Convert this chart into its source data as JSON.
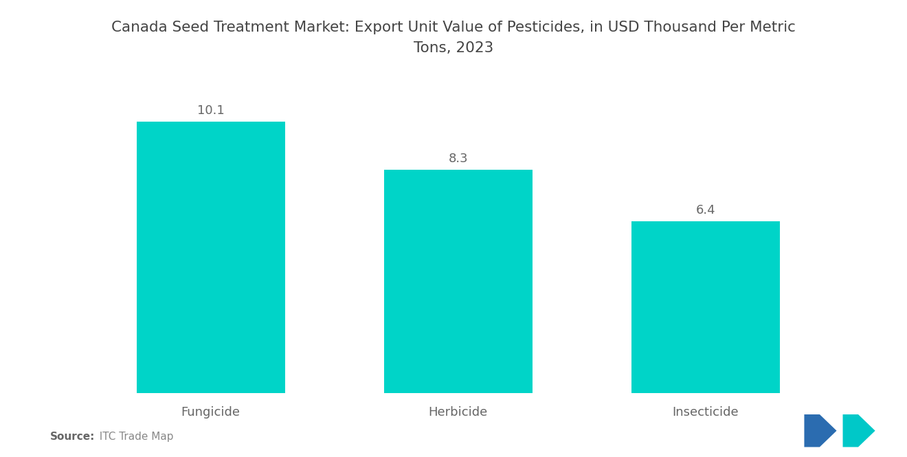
{
  "title_line1": "Canada Seed Treatment Market: Export Unit Value of Pesticides, in USD Thousand Per Metric",
  "title_line2": "Tons, 2023",
  "categories": [
    "Fungicide",
    "Herbicide",
    "Insecticide"
  ],
  "values": [
    10.1,
    8.3,
    6.4
  ],
  "bar_color": "#00D4C8",
  "background_color": "#ffffff",
  "value_labels": [
    "10.1",
    "8.3",
    "6.4"
  ],
  "source_bold": "Source:",
  "source_label": "  ITC Trade Map",
  "title_fontsize": 15.5,
  "label_fontsize": 13,
  "value_fontsize": 13,
  "source_fontsize": 11,
  "ylim": [
    0,
    12.5
  ],
  "bar_width": 0.6,
  "logo_blue": "#2B6CB0",
  "logo_teal": "#00C8C8"
}
